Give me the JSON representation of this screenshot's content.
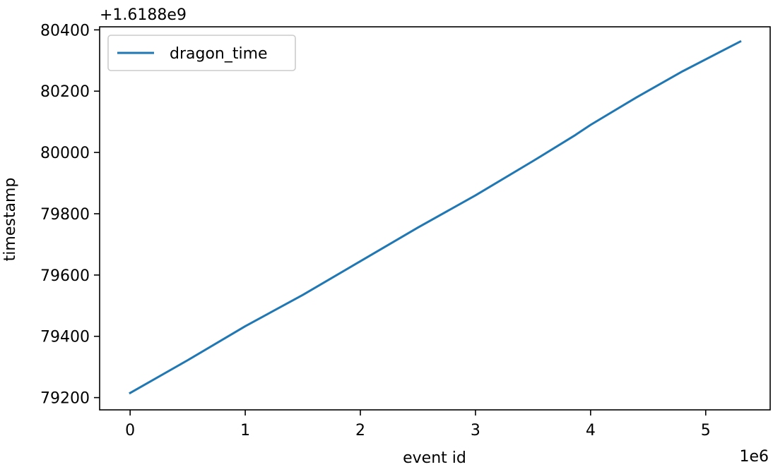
{
  "chart_data": {
    "type": "line",
    "title": "",
    "xlabel": "event id",
    "ylabel": "timestamp",
    "x_offset_text": "1e6",
    "y_offset_text": "+1.6188e9",
    "xlim": [
      -0.265,
      5.56
    ],
    "ylim": [
      79160,
      80410
    ],
    "x_ticks": [
      0,
      1,
      2,
      3,
      4,
      5
    ],
    "y_ticks": [
      79200,
      79400,
      79600,
      79800,
      80000,
      80200,
      80400
    ],
    "x_tick_labels": [
      "0",
      "1",
      "2",
      "3",
      "4",
      "5"
    ],
    "y_tick_labels": [
      "79200",
      "79400",
      "79600",
      "79800",
      "80000",
      "80200",
      "80400"
    ],
    "grid": false,
    "legend_position": "top-left",
    "series": [
      {
        "name": "dragon_time",
        "color": "#1f77b4",
        "x": [
          0,
          0.5,
          1.0,
          1.5,
          2.0,
          2.5,
          3.0,
          3.5,
          3.86,
          3.88,
          4.0,
          4.4,
          4.8,
          5.3
        ],
        "y": [
          79215,
          79322,
          79433,
          79535,
          79645,
          79755,
          79860,
          79972,
          80055,
          80060,
          80090,
          80180,
          80265,
          80362
        ]
      }
    ]
  }
}
